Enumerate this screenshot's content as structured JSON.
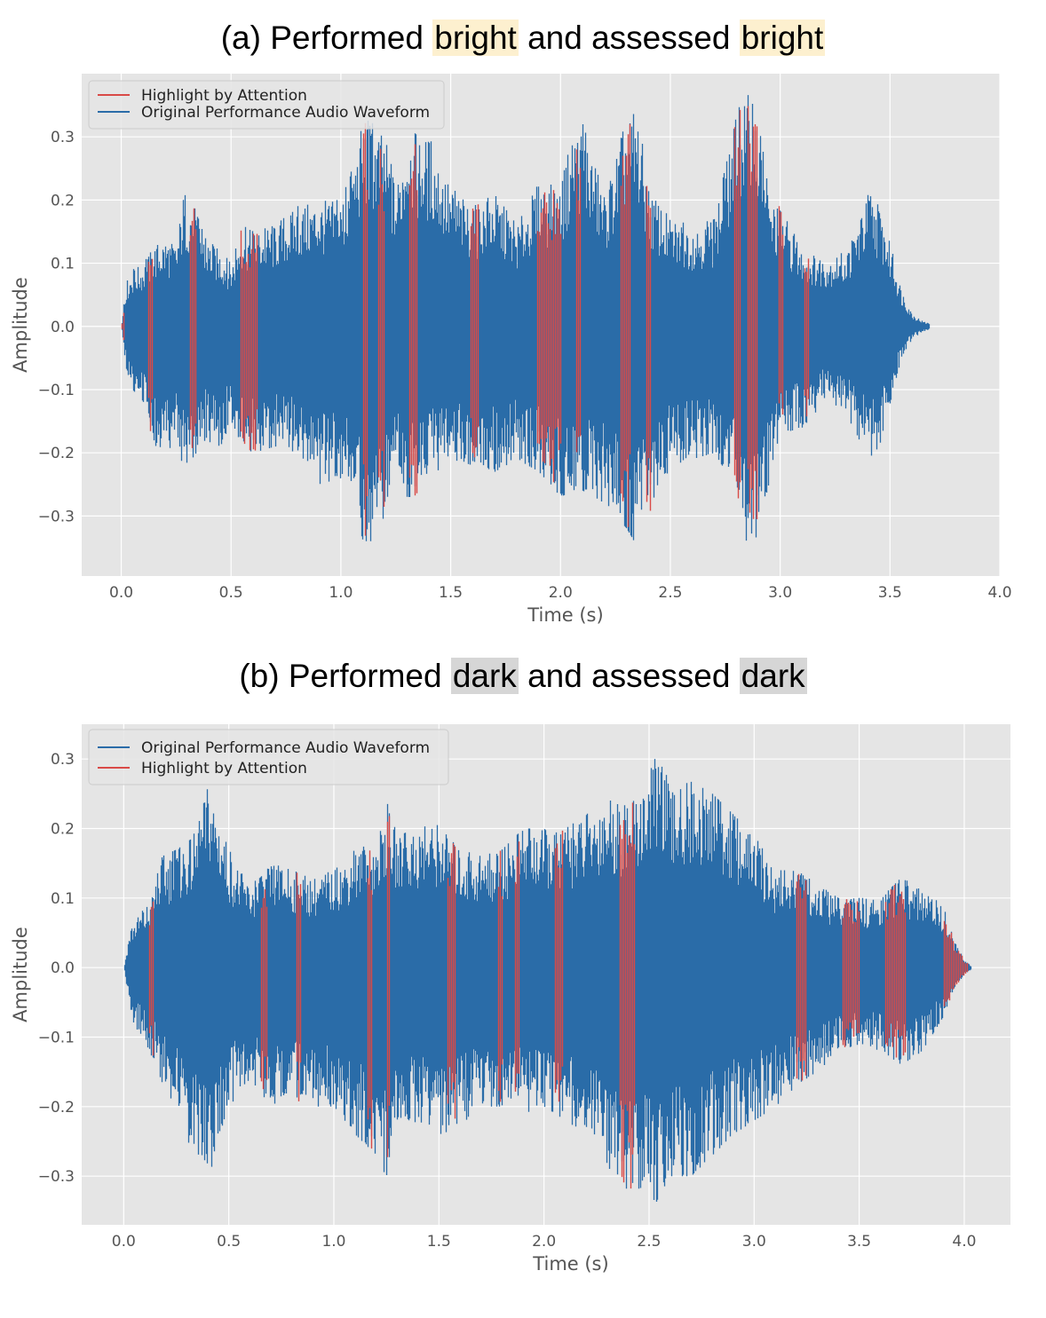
{
  "panels": [
    {
      "title": {
        "prefix": "(a) Performed ",
        "word1": "bright",
        "middle": " and assessed ",
        "word2": "bright",
        "highlight_color": "#fdf0cf"
      }
    },
    {
      "title": {
        "prefix": "(b) Performed ",
        "word1": "dark",
        "middle": " and assessed ",
        "word2": "dark",
        "highlight_color": "#d6d6d6"
      }
    }
  ],
  "colors": {
    "waveform": "#2a6ca8",
    "highlight": "#d94a47",
    "plot_background": "#e5e5e5",
    "grid": "#ffffff"
  },
  "chart_data": [
    {
      "type": "line",
      "xlabel": "Time (s)",
      "ylabel": "Amplitude",
      "xlim": [
        -0.18,
        4.0
      ],
      "ylim": [
        -0.395,
        0.4
      ],
      "xticks": [
        0.0,
        0.5,
        1.0,
        1.5,
        2.0,
        2.5,
        3.0,
        3.5,
        4.0
      ],
      "xtick_labels": [
        "0.0",
        "0.5",
        "1.0",
        "1.5",
        "2.0",
        "2.5",
        "3.0",
        "3.5",
        "4.0"
      ],
      "yticks": [
        0.3,
        0.2,
        0.1,
        0.0,
        -0.1,
        -0.2,
        -0.3
      ],
      "ytick_labels": [
        "0.3",
        "0.2",
        "0.1",
        "0.0",
        "−0.1",
        "−0.2",
        "−0.3"
      ],
      "grid": true,
      "legend_position": "top-left",
      "legend": [
        "Highlight by Attention",
        "Original Performance Audio Waveform"
      ],
      "series": [
        {
          "name": "Original Performance Audio Waveform",
          "color": "#2a6ca8",
          "envelope": {
            "t": [
              0.0,
              0.02,
              0.05,
              0.1,
              0.15,
              0.2,
              0.25,
              0.28,
              0.32,
              0.38,
              0.45,
              0.5,
              0.55,
              0.6,
              0.7,
              0.8,
              0.9,
              1.0,
              1.05,
              1.1,
              1.15,
              1.2,
              1.25,
              1.3,
              1.35,
              1.4,
              1.5,
              1.6,
              1.7,
              1.8,
              1.9,
              2.0,
              2.05,
              2.1,
              2.2,
              2.3,
              2.35,
              2.4,
              2.5,
              2.6,
              2.7,
              2.8,
              2.85,
              2.9,
              2.95,
              3.0,
              3.1,
              3.2,
              3.3,
              3.4,
              3.45,
              3.5,
              3.55,
              3.6,
              3.65,
              3.68
            ],
            "upper": [
              0.0,
              0.07,
              0.09,
              0.1,
              0.13,
              0.14,
              0.13,
              0.21,
              0.2,
              0.14,
              0.12,
              0.1,
              0.16,
              0.15,
              0.16,
              0.19,
              0.2,
              0.2,
              0.25,
              0.33,
              0.32,
              0.3,
              0.22,
              0.32,
              0.3,
              0.3,
              0.22,
              0.19,
              0.21,
              0.16,
              0.23,
              0.22,
              0.31,
              0.32,
              0.21,
              0.33,
              0.34,
              0.22,
              0.17,
              0.16,
              0.17,
              0.34,
              0.37,
              0.33,
              0.2,
              0.19,
              0.12,
              0.11,
              0.12,
              0.21,
              0.19,
              0.13,
              0.06,
              0.02,
              0.008,
              0.005
            ],
            "lower": [
              0.0,
              -0.07,
              -0.1,
              -0.12,
              -0.2,
              -0.2,
              -0.19,
              -0.22,
              -0.21,
              -0.18,
              -0.19,
              -0.15,
              -0.19,
              -0.2,
              -0.19,
              -0.2,
              -0.25,
              -0.24,
              -0.28,
              -0.34,
              -0.34,
              -0.3,
              -0.24,
              -0.27,
              -0.27,
              -0.24,
              -0.21,
              -0.22,
              -0.23,
              -0.21,
              -0.23,
              -0.27,
              -0.26,
              -0.26,
              -0.28,
              -0.32,
              -0.35,
              -0.3,
              -0.22,
              -0.21,
              -0.2,
              -0.26,
              -0.35,
              -0.33,
              -0.25,
              -0.17,
              -0.16,
              -0.12,
              -0.14,
              -0.21,
              -0.19,
              -0.12,
              -0.05,
              -0.02,
              -0.008,
              -0.005
            ]
          }
        },
        {
          "name": "Highlight by Attention",
          "color": "#d94a47",
          "segments": [
            [
              0.0,
              0.01
            ],
            [
              0.12,
              0.14
            ],
            [
              0.31,
              0.34
            ],
            [
              0.54,
              0.62
            ],
            [
              1.1,
              1.12
            ],
            [
              1.17,
              1.2
            ],
            [
              1.31,
              1.35
            ],
            [
              1.59,
              1.63
            ],
            [
              1.89,
              2.0
            ],
            [
              2.07,
              2.09
            ],
            [
              2.27,
              2.32
            ],
            [
              2.39,
              2.41
            ],
            [
              2.79,
              2.82
            ],
            [
              2.85,
              2.9
            ],
            [
              2.99,
              3.01
            ],
            [
              3.11,
              3.13
            ]
          ]
        }
      ]
    },
    {
      "type": "line",
      "xlabel": "Time (s)",
      "ylabel": "Amplitude",
      "xlim": [
        -0.2,
        4.22
      ],
      "ylim": [
        -0.37,
        0.35
      ],
      "xticks": [
        0.0,
        0.5,
        1.0,
        1.5,
        2.0,
        2.5,
        3.0,
        3.5,
        4.0
      ],
      "xtick_labels": [
        "0.0",
        "0.5",
        "1.0",
        "1.5",
        "2.0",
        "2.5",
        "3.0",
        "3.5",
        "4.0"
      ],
      "yticks": [
        0.3,
        0.2,
        0.1,
        0.0,
        -0.1,
        -0.2,
        -0.3
      ],
      "ytick_labels": [
        "0.3",
        "0.2",
        "0.1",
        "0.0",
        "−0.1",
        "−0.2",
        "−0.3"
      ],
      "grid": true,
      "legend_position": "top-left",
      "legend": [
        "Original Performance Audio Waveform",
        "Highlight by Attention"
      ],
      "series": [
        {
          "name": "Original Performance Audio Waveform",
          "color": "#2a6ca8",
          "envelope": {
            "t": [
              0.0,
              0.03,
              0.08,
              0.12,
              0.18,
              0.25,
              0.3,
              0.35,
              0.4,
              0.45,
              0.5,
              0.55,
              0.6,
              0.65,
              0.7,
              0.8,
              0.9,
              1.0,
              1.1,
              1.2,
              1.25,
              1.3,
              1.4,
              1.5,
              1.6,
              1.7,
              1.8,
              1.9,
              2.0,
              2.1,
              2.2,
              2.3,
              2.4,
              2.5,
              2.55,
              2.6,
              2.7,
              2.8,
              2.9,
              3.0,
              3.1,
              3.2,
              3.3,
              3.4,
              3.5,
              3.6,
              3.7,
              3.8,
              3.9,
              3.95,
              4.0,
              4.03
            ],
            "upper": [
              0.0,
              0.06,
              0.08,
              0.09,
              0.16,
              0.17,
              0.18,
              0.2,
              0.27,
              0.22,
              0.17,
              0.14,
              0.12,
              0.13,
              0.15,
              0.14,
              0.13,
              0.14,
              0.17,
              0.18,
              0.24,
              0.19,
              0.2,
              0.21,
              0.17,
              0.16,
              0.17,
              0.2,
              0.2,
              0.2,
              0.22,
              0.25,
              0.23,
              0.28,
              0.32,
              0.25,
              0.27,
              0.25,
              0.22,
              0.19,
              0.14,
              0.14,
              0.12,
              0.1,
              0.1,
              0.1,
              0.13,
              0.11,
              0.09,
              0.04,
              0.01,
              0.003
            ],
            "upper_note": "",
            "lower": [
              0.0,
              -0.07,
              -0.1,
              -0.12,
              -0.17,
              -0.2,
              -0.25,
              -0.27,
              -0.3,
              -0.26,
              -0.2,
              -0.18,
              -0.16,
              -0.18,
              -0.2,
              -0.19,
              -0.2,
              -0.2,
              -0.24,
              -0.27,
              -0.33,
              -0.25,
              -0.22,
              -0.24,
              -0.23,
              -0.2,
              -0.2,
              -0.21,
              -0.2,
              -0.22,
              -0.24,
              -0.3,
              -0.32,
              -0.33,
              -0.34,
              -0.3,
              -0.3,
              -0.27,
              -0.24,
              -0.22,
              -0.2,
              -0.17,
              -0.15,
              -0.12,
              -0.11,
              -0.12,
              -0.14,
              -0.12,
              -0.07,
              -0.03,
              -0.01,
              -0.003
            ]
          }
        },
        {
          "name": "Highlight by Attention",
          "color": "#d94a47",
          "segments": [
            [
              0.12,
              0.14
            ],
            [
              0.65,
              0.68
            ],
            [
              0.82,
              0.84
            ],
            [
              1.16,
              1.18
            ],
            [
              1.25,
              1.27
            ],
            [
              1.54,
              1.58
            ],
            [
              1.78,
              1.8
            ],
            [
              1.86,
              1.88
            ],
            [
              2.05,
              2.09
            ],
            [
              2.36,
              2.43
            ],
            [
              3.2,
              3.25
            ],
            [
              3.42,
              3.5
            ],
            [
              3.62,
              3.72
            ],
            [
              3.9,
              4.02
            ]
          ]
        }
      ]
    }
  ]
}
